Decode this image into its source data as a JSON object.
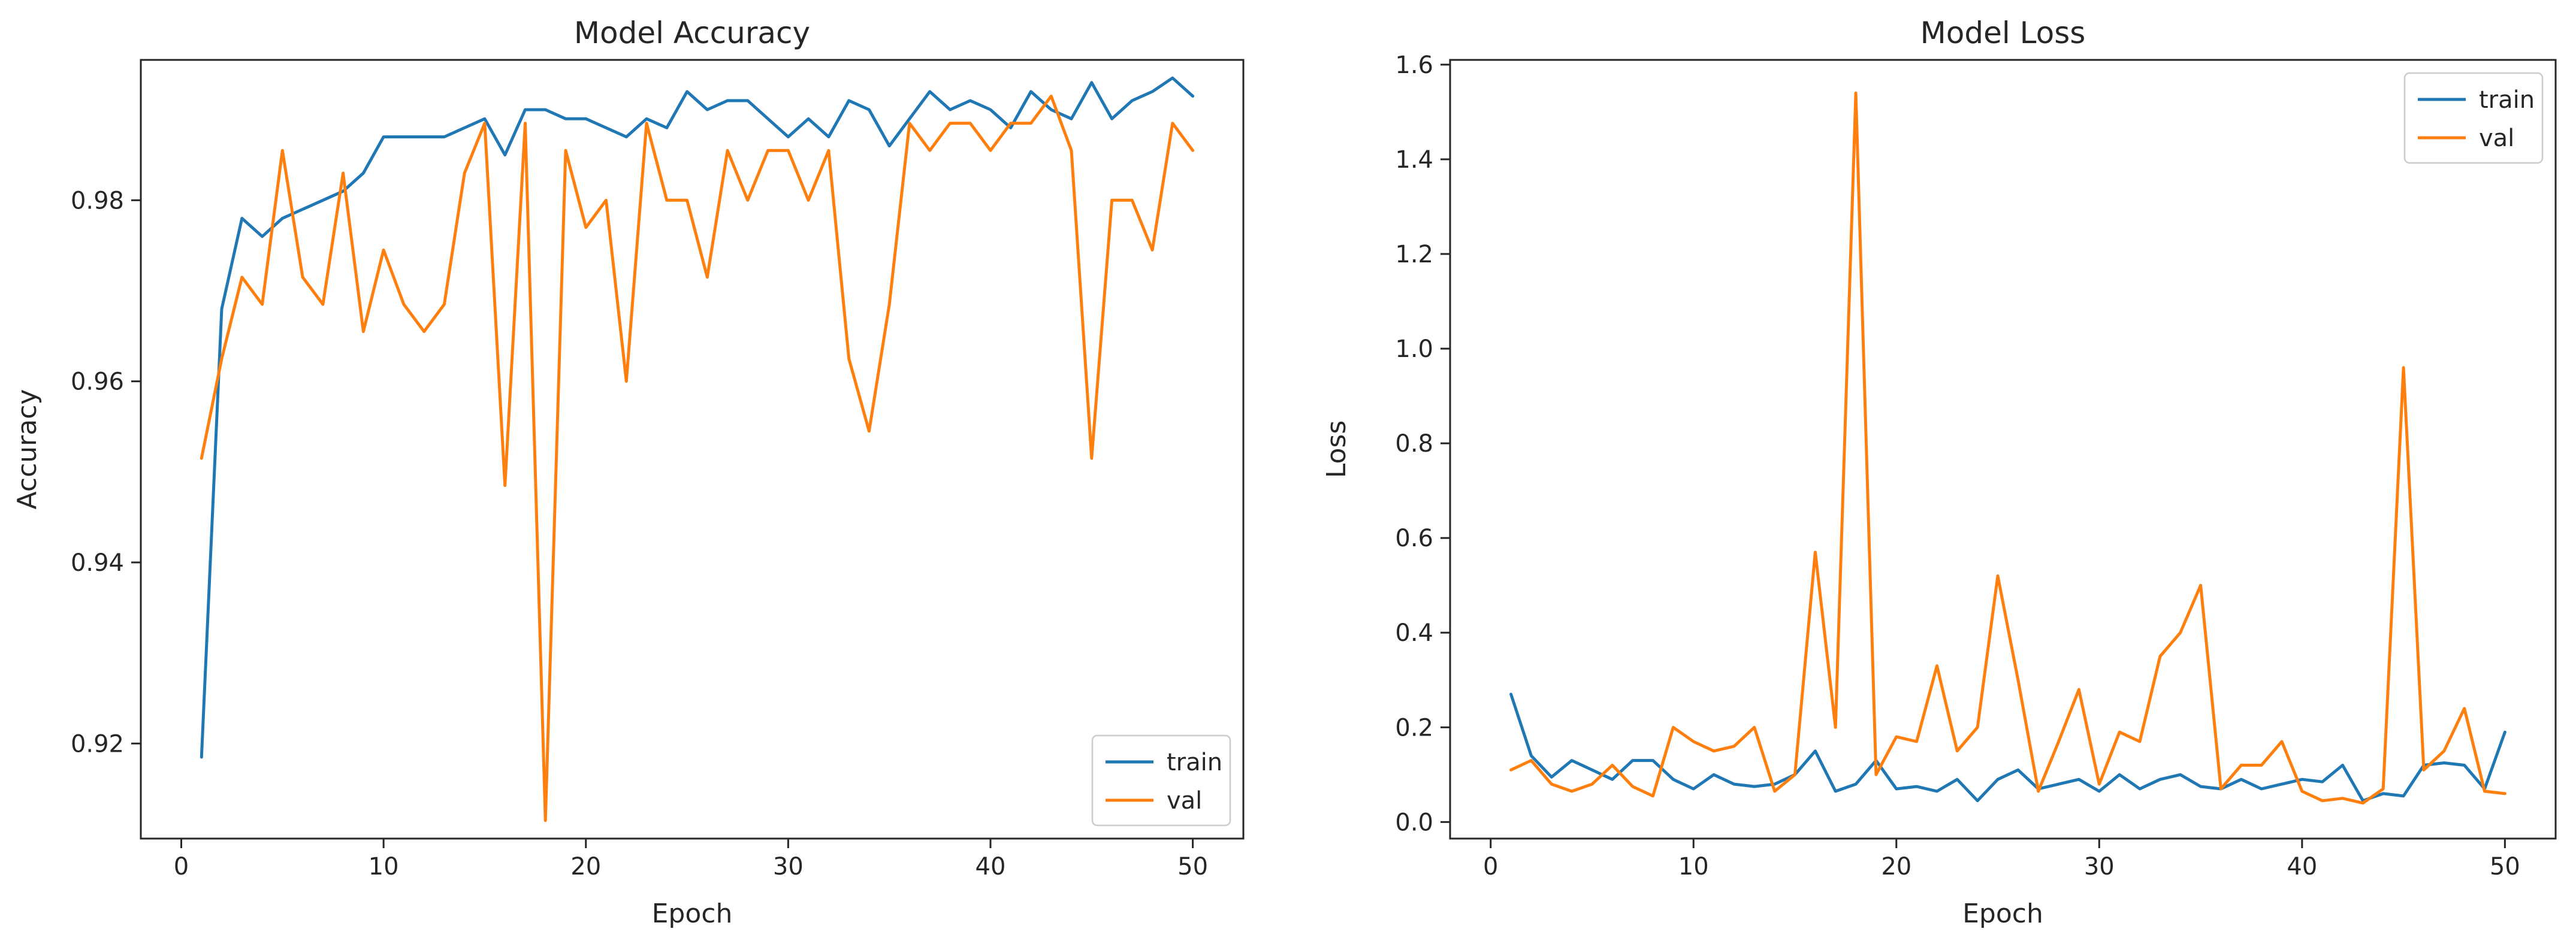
{
  "chart_data": [
    {
      "type": "line",
      "title": "Model Accuracy",
      "xlabel": "Epoch",
      "ylabel": "Accuracy",
      "xlim": [
        -2,
        52.5
      ],
      "ylim": [
        0.9095,
        0.9955
      ],
      "xticks": [
        0,
        10,
        20,
        30,
        40,
        50
      ],
      "yticks": [
        0.92,
        0.94,
        0.96,
        0.98
      ],
      "ytick_decimals": 2,
      "legend_position": "lower-right",
      "grid": false,
      "x": [
        1,
        2,
        3,
        4,
        5,
        6,
        7,
        8,
        9,
        10,
        11,
        12,
        13,
        14,
        15,
        16,
        17,
        18,
        19,
        20,
        21,
        22,
        23,
        24,
        25,
        26,
        27,
        28,
        29,
        30,
        31,
        32,
        33,
        34,
        35,
        36,
        37,
        38,
        39,
        40,
        41,
        42,
        43,
        44,
        45,
        46,
        47,
        48,
        49,
        50
      ],
      "series": [
        {
          "name": "train",
          "color": "#1f77b4",
          "values": [
            0.9185,
            0.968,
            0.978,
            0.976,
            0.978,
            0.979,
            0.98,
            0.981,
            0.983,
            0.987,
            0.987,
            0.987,
            0.987,
            0.988,
            0.989,
            0.985,
            0.99,
            0.99,
            0.989,
            0.989,
            0.988,
            0.987,
            0.989,
            0.988,
            0.992,
            0.99,
            0.991,
            0.991,
            0.989,
            0.987,
            0.989,
            0.987,
            0.991,
            0.99,
            0.986,
            0.989,
            0.992,
            0.99,
            0.991,
            0.99,
            0.988,
            0.992,
            0.99,
            0.989,
            0.993,
            0.989,
            0.991,
            0.992,
            0.9935,
            0.9915
          ]
        },
        {
          "name": "val",
          "color": "#ff7f0e",
          "values": [
            0.9515,
            0.9625,
            0.9715,
            0.9685,
            0.9855,
            0.9715,
            0.9685,
            0.983,
            0.9655,
            0.9745,
            0.9685,
            0.9655,
            0.9685,
            0.983,
            0.9885,
            0.9485,
            0.9885,
            0.9115,
            0.9855,
            0.977,
            0.98,
            0.96,
            0.9885,
            0.98,
            0.98,
            0.9715,
            0.9855,
            0.98,
            0.9855,
            0.9855,
            0.98,
            0.9855,
            0.9625,
            0.9545,
            0.9685,
            0.9885,
            0.9855,
            0.9885,
            0.9885,
            0.9855,
            0.9885,
            0.9885,
            0.9915,
            0.9855,
            0.9515,
            0.98,
            0.98,
            0.9745,
            0.9885,
            0.9855
          ]
        }
      ]
    },
    {
      "type": "line",
      "title": "Model Loss",
      "xlabel": "Epoch",
      "ylabel": "Loss",
      "xlim": [
        -2,
        52.5
      ],
      "ylim": [
        -0.035,
        1.61
      ],
      "xticks": [
        0,
        10,
        20,
        30,
        40,
        50
      ],
      "yticks": [
        0.0,
        0.2,
        0.4,
        0.6,
        0.8,
        1.0,
        1.2,
        1.4,
        1.6
      ],
      "ytick_decimals": 1,
      "legend_position": "upper-right",
      "grid": false,
      "x": [
        1,
        2,
        3,
        4,
        5,
        6,
        7,
        8,
        9,
        10,
        11,
        12,
        13,
        14,
        15,
        16,
        17,
        18,
        19,
        20,
        21,
        22,
        23,
        24,
        25,
        26,
        27,
        28,
        29,
        30,
        31,
        32,
        33,
        34,
        35,
        36,
        37,
        38,
        39,
        40,
        41,
        42,
        43,
        44,
        45,
        46,
        47,
        48,
        49,
        50
      ],
      "series": [
        {
          "name": "train",
          "color": "#1f77b4",
          "values": [
            0.27,
            0.14,
            0.095,
            0.13,
            0.11,
            0.09,
            0.13,
            0.13,
            0.09,
            0.07,
            0.1,
            0.08,
            0.075,
            0.08,
            0.1,
            0.15,
            0.065,
            0.08,
            0.13,
            0.07,
            0.075,
            0.065,
            0.09,
            0.045,
            0.09,
            0.11,
            0.07,
            0.08,
            0.09,
            0.065,
            0.1,
            0.07,
            0.09,
            0.1,
            0.075,
            0.07,
            0.09,
            0.07,
            0.08,
            0.09,
            0.085,
            0.12,
            0.045,
            0.06,
            0.055,
            0.12,
            0.125,
            0.12,
            0.07,
            0.19
          ]
        },
        {
          "name": "val",
          "color": "#ff7f0e",
          "values": [
            0.11,
            0.13,
            0.08,
            0.065,
            0.08,
            0.12,
            0.075,
            0.055,
            0.2,
            0.17,
            0.15,
            0.16,
            0.2,
            0.065,
            0.1,
            0.57,
            0.2,
            1.54,
            0.1,
            0.18,
            0.17,
            0.33,
            0.15,
            0.2,
            0.52,
            0.3,
            0.065,
            0.17,
            0.28,
            0.08,
            0.19,
            0.17,
            0.35,
            0.4,
            0.5,
            0.07,
            0.12,
            0.12,
            0.17,
            0.065,
            0.045,
            0.05,
            0.04,
            0.07,
            0.96,
            0.11,
            0.15,
            0.24,
            0.065,
            0.06
          ]
        }
      ]
    }
  ]
}
